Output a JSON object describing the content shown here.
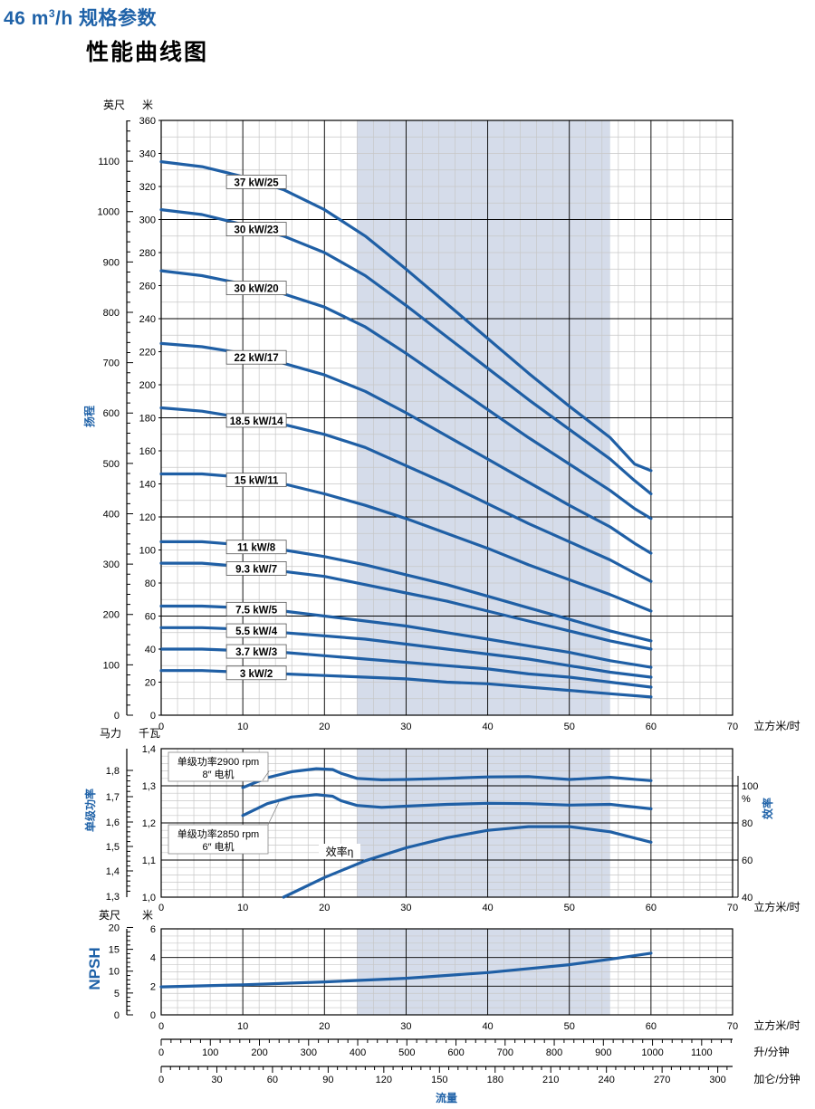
{
  "header": {
    "title_prefix": "46 m",
    "title_sup": "3",
    "title_suffix": "/h 规格参数",
    "subtitle": "性能曲线图"
  },
  "colors": {
    "curve": "#1f5fa5",
    "shade": "#d5dcea",
    "grid": "#c7c7c7",
    "grid_major": "#000000",
    "blue_label": "#1f62a8"
  },
  "flow_axis": {
    "ticks": [
      0,
      10,
      20,
      30,
      40,
      50,
      60,
      70
    ],
    "unit": "立方米/时"
  },
  "shaded_range": [
    24,
    55
  ],
  "chart_data": [
    {
      "type": "line",
      "panel": "head",
      "xlabel": "立方米/时",
      "ylabel": "扬程",
      "y_unit_left": "英尺",
      "y_unit_right": "米",
      "xlim": [
        0,
        70
      ],
      "ylim": [
        0,
        360
      ],
      "y_ticks": [
        0,
        20,
        40,
        60,
        80,
        100,
        120,
        140,
        160,
        180,
        200,
        220,
        240,
        260,
        280,
        300,
        320,
        340,
        360
      ],
      "feet_ticks": [
        0,
        100,
        200,
        300,
        400,
        500,
        600,
        700,
        800,
        900,
        1000,
        1100
      ],
      "series": [
        {
          "name": "37 kW/25",
          "label_x": 8,
          "x": [
            0,
            5,
            10,
            15,
            20,
            25,
            30,
            35,
            40,
            45,
            50,
            55,
            58,
            60
          ],
          "y": [
            335,
            332,
            326,
            318,
            306,
            290,
            270,
            249,
            228,
            207,
            187,
            168,
            152,
            148
          ]
        },
        {
          "name": "30 kW/23",
          "label_x": 8,
          "x": [
            0,
            5,
            10,
            15,
            20,
            25,
            30,
            35,
            40,
            45,
            50,
            55,
            58,
            60
          ],
          "y": [
            306,
            303,
            297,
            290,
            280,
            266,
            248,
            229,
            210,
            191,
            173,
            155,
            142,
            134
          ]
        },
        {
          "name": "30 kW/20",
          "label_x": 8,
          "x": [
            0,
            5,
            10,
            15,
            20,
            25,
            30,
            35,
            40,
            45,
            50,
            55,
            58,
            60
          ],
          "y": [
            269,
            266,
            261,
            255,
            247,
            235,
            219,
            202,
            185,
            168,
            152,
            136,
            125,
            119
          ]
        },
        {
          "name": "22 kW/17",
          "label_x": 8,
          "x": [
            0,
            5,
            10,
            15,
            20,
            25,
            30,
            35,
            40,
            45,
            50,
            55,
            58,
            60
          ],
          "y": [
            225,
            223,
            219,
            213,
            206,
            196,
            183,
            169,
            155,
            141,
            127,
            114,
            104,
            98
          ]
        },
        {
          "name": "18.5 kW/14",
          "label_x": 8,
          "x": [
            0,
            5,
            10,
            15,
            20,
            25,
            30,
            35,
            40,
            45,
            50,
            55,
            58,
            60
          ],
          "y": [
            186,
            184,
            180,
            176,
            170,
            162,
            151,
            140,
            128,
            116,
            105,
            94,
            86,
            81
          ]
        },
        {
          "name": "15 kW/11",
          "label_x": 8,
          "x": [
            0,
            5,
            10,
            15,
            20,
            25,
            30,
            35,
            40,
            45,
            50,
            55,
            58,
            60
          ],
          "y": [
            146,
            146,
            144,
            140,
            134,
            127,
            119,
            110,
            101,
            91,
            82,
            73,
            67,
            63
          ]
        },
        {
          "name": "11 kW/8",
          "label_x": 8,
          "x": [
            0,
            5,
            10,
            15,
            20,
            25,
            30,
            35,
            40,
            45,
            50,
            55,
            60
          ],
          "y": [
            105,
            105,
            103,
            100,
            96,
            91,
            85,
            79,
            72,
            65,
            58,
            51,
            45
          ]
        },
        {
          "name": "9.3 kW/7",
          "label_x": 8,
          "x": [
            0,
            5,
            10,
            15,
            20,
            25,
            30,
            35,
            40,
            45,
            50,
            55,
            60
          ],
          "y": [
            92,
            92,
            90,
            87,
            84,
            79,
            74,
            69,
            63,
            57,
            51,
            45,
            40
          ]
        },
        {
          "name": "7.5 kW/5",
          "label_x": 8,
          "x": [
            0,
            5,
            10,
            15,
            20,
            25,
            30,
            35,
            40,
            45,
            50,
            55,
            60
          ],
          "y": [
            66,
            66,
            65,
            63,
            60,
            57,
            54,
            50,
            46,
            42,
            38,
            33,
            29
          ]
        },
        {
          "name": "5.5 kW/4",
          "label_x": 8,
          "x": [
            0,
            5,
            10,
            15,
            20,
            25,
            30,
            35,
            40,
            45,
            50,
            55,
            60
          ],
          "y": [
            53,
            53,
            52,
            50,
            48,
            46,
            43,
            40,
            37,
            34,
            30,
            26,
            23
          ]
        },
        {
          "name": "3.7 kW/3",
          "label_x": 8,
          "x": [
            0,
            5,
            10,
            15,
            20,
            25,
            30,
            35,
            40,
            45,
            50,
            55,
            60
          ],
          "y": [
            40,
            40,
            39,
            38,
            36,
            34,
            32,
            30,
            28,
            25,
            23,
            20,
            17
          ]
        },
        {
          "name": "3 kW/2",
          "label_x": 8,
          "x": [
            0,
            5,
            10,
            15,
            20,
            25,
            30,
            35,
            40,
            45,
            50,
            55,
            60
          ],
          "y": [
            27,
            27,
            26,
            25,
            24,
            23,
            22,
            20,
            19,
            17,
            15,
            13,
            11
          ]
        }
      ]
    },
    {
      "type": "line",
      "panel": "power_efficiency",
      "xlabel": "立方米/时",
      "y_unit_left_hp": "马力",
      "y_unit_left_kw": "千瓦",
      "ylabel_left": "单级功率",
      "ylabel_right": "效率",
      "xlim": [
        0,
        70
      ],
      "ylim": [
        1.0,
        1.4
      ],
      "kw_ticks": [
        "1,0",
        "1,1",
        "1,2",
        "1,3",
        "1,4"
      ],
      "hp_ticks": [
        "1,3",
        "1,4",
        "1,5",
        "1,6",
        "1,7",
        "1,8"
      ],
      "eff_ticks": [
        "40",
        "60",
        "80",
        "100"
      ],
      "eff_unit": "%",
      "series": [
        {
          "name": "单级功率2900 rpm 8″ 电机",
          "label_line1": "单级功率2900 rpm",
          "label_line2": "8″ 电机",
          "x": [
            10,
            13,
            16,
            19,
            21,
            22,
            24,
            27,
            30,
            35,
            40,
            45,
            50,
            55,
            60
          ],
          "y": [
            1.295,
            1.322,
            1.338,
            1.346,
            1.344,
            1.334,
            1.32,
            1.316,
            1.317,
            1.32,
            1.324,
            1.325,
            1.317,
            1.323,
            1.314
          ]
        },
        {
          "name": "单级功率2850 rpm 6″ 电机",
          "label_line1": "单级功率2850 rpm",
          "label_line2": "6″ 电机",
          "x": [
            10,
            13,
            16,
            19,
            21,
            22,
            24,
            27,
            30,
            35,
            40,
            45,
            50,
            55,
            60
          ],
          "y": [
            1.22,
            1.252,
            1.27,
            1.276,
            1.272,
            1.26,
            1.247,
            1.242,
            1.245,
            1.25,
            1.253,
            1.252,
            1.248,
            1.25,
            1.238
          ]
        },
        {
          "name": "效率η",
          "label": "效率η",
          "x": [
            15,
            20,
            25,
            30,
            35,
            40,
            45,
            50,
            55,
            60
          ],
          "y": [
            1.0,
            1.053,
            1.098,
            1.133,
            1.16,
            1.18,
            1.19,
            1.19,
            1.176,
            1.148
          ]
        }
      ]
    },
    {
      "type": "line",
      "panel": "npsh",
      "xlabel": "立方米/时",
      "ylabel": "NPSH",
      "y_unit_left": "英尺",
      "y_unit_right": "米",
      "xlim": [
        0,
        70
      ],
      "ylim": [
        0,
        6
      ],
      "y_ticks": [
        0,
        2,
        4,
        6
      ],
      "feet_ticks": [
        0,
        5,
        10,
        15,
        20
      ],
      "series": [
        {
          "name": "NPSH",
          "x": [
            0,
            10,
            20,
            30,
            40,
            50,
            55,
            60
          ],
          "y": [
            1.95,
            2.1,
            2.3,
            2.55,
            2.95,
            3.5,
            3.88,
            4.3
          ]
        }
      ]
    }
  ],
  "extra_axes": {
    "lpm": {
      "ticks": [
        0,
        100,
        200,
        300,
        400,
        500,
        600,
        700,
        800,
        900,
        1000,
        1100
      ],
      "unit": "升/分钟"
    },
    "gpm": {
      "ticks": [
        0,
        30,
        60,
        90,
        120,
        150,
        180,
        210,
        240,
        270,
        300
      ],
      "unit": "加仑/分钟"
    },
    "title": "流量"
  }
}
